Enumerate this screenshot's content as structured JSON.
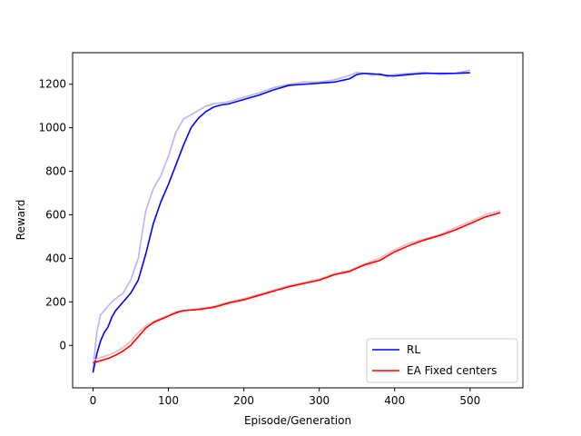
{
  "chart_data": {
    "type": "line",
    "title": "",
    "xlabel": "Episode/Generation",
    "ylabel": "Reward",
    "xlim": [
      -27,
      570
    ],
    "ylim": [
      -195,
      1345
    ],
    "xticks": [
      0,
      100,
      200,
      300,
      400,
      500
    ],
    "yticks": [
      0,
      200,
      400,
      600,
      800,
      1000,
      1200
    ],
    "grid": false,
    "legend_position": "lower-right",
    "series": [
      {
        "name": "RL",
        "color": "#0000ff",
        "raw_color": "#b3b3ff",
        "x": [
          0,
          5,
          10,
          15,
          20,
          25,
          30,
          40,
          50,
          60,
          70,
          80,
          90,
          100,
          110,
          120,
          130,
          140,
          150,
          160,
          170,
          180,
          200,
          220,
          240,
          260,
          280,
          300,
          320,
          340,
          350,
          360,
          370,
          380,
          390,
          400,
          420,
          440,
          460,
          480,
          500
        ],
        "values": [
          -125,
          -40,
          20,
          60,
          85,
          130,
          160,
          200,
          240,
          300,
          420,
          560,
          660,
          740,
          830,
          920,
          1000,
          1045,
          1075,
          1095,
          1105,
          1110,
          1130,
          1150,
          1175,
          1195,
          1200,
          1205,
          1210,
          1225,
          1245,
          1250,
          1248,
          1245,
          1240,
          1238,
          1245,
          1250,
          1250,
          1250,
          1253
        ],
        "raw_values": [
          -110,
          60,
          140,
          160,
          180,
          200,
          215,
          240,
          300,
          400,
          620,
          720,
          780,
          870,
          980,
          1040,
          1060,
          1080,
          1100,
          1110,
          1115,
          1120,
          1140,
          1160,
          1185,
          1200,
          1210,
          1210,
          1220,
          1240,
          1255,
          1250,
          1240,
          1250,
          1235,
          1245,
          1250,
          1255,
          1245,
          1250,
          1265
        ]
      },
      {
        "name": "EA Fixed centers",
        "color": "#ff0000",
        "raw_color": "#ffb3b3",
        "x": [
          0,
          10,
          20,
          30,
          40,
          50,
          60,
          70,
          80,
          90,
          100,
          110,
          120,
          140,
          160,
          180,
          200,
          220,
          240,
          260,
          280,
          300,
          320,
          340,
          360,
          380,
          400,
          420,
          440,
          460,
          480,
          500,
          520,
          540
        ],
        "values": [
          -80,
          -70,
          -60,
          -45,
          -25,
          0,
          40,
          80,
          105,
          120,
          135,
          150,
          160,
          165,
          175,
          195,
          210,
          230,
          250,
          270,
          285,
          300,
          325,
          340,
          370,
          390,
          430,
          460,
          485,
          505,
          530,
          560,
          590,
          610
        ],
        "raw_values": [
          -70,
          -55,
          -45,
          -30,
          -10,
          20,
          60,
          90,
          110,
          125,
          140,
          155,
          160,
          170,
          180,
          200,
          215,
          235,
          255,
          275,
          290,
          305,
          330,
          345,
          375,
          400,
          440,
          470,
          490,
          510,
          540,
          570,
          600,
          620
        ]
      }
    ]
  }
}
